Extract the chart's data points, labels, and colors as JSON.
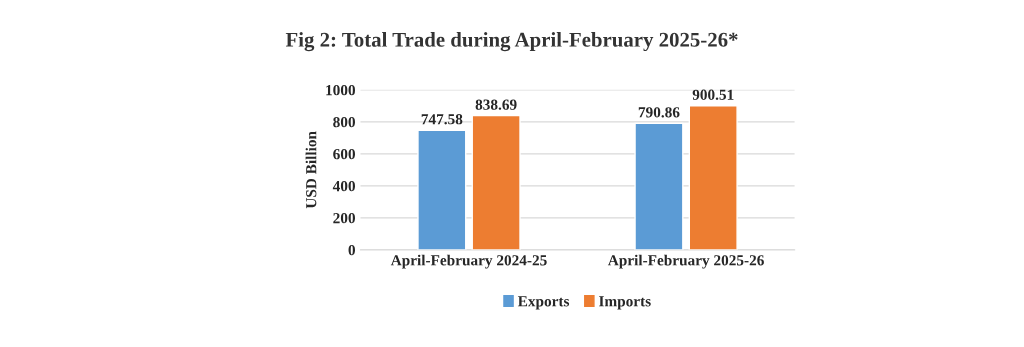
{
  "chart_data": {
    "type": "bar",
    "title": "Fig 2: Total Trade during April-February 2025-26*",
    "ylabel": "USD Billion",
    "categories": [
      "April-February 2024-25",
      "April-February 2025-26"
    ],
    "series": [
      {
        "name": "Exports",
        "color": "#5b9bd5",
        "values": [
          747.58,
          790.86
        ]
      },
      {
        "name": "Imports",
        "color": "#ed7d31",
        "values": [
          838.69,
          900.51
        ]
      }
    ],
    "ylim": [
      0,
      1000
    ],
    "yticks": [
      0,
      200,
      400,
      600,
      800,
      1000
    ],
    "grid": "y",
    "legend": "bottom",
    "data_labels": true
  }
}
